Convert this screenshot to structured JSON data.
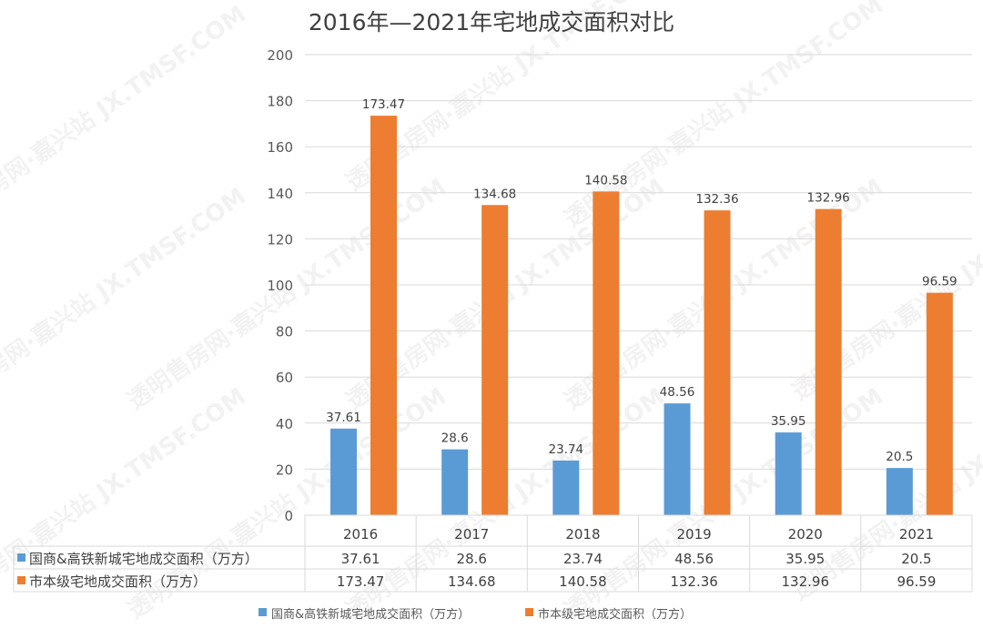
{
  "chart_data": {
    "type": "bar",
    "title": "2016年—2021年宅地成交面积对比",
    "categories": [
      "2016",
      "2017",
      "2018",
      "2019",
      "2020",
      "2021"
    ],
    "series": [
      {
        "name": "国商&高铁新城宅地成交面积（万方）",
        "color": "#5B9BD5",
        "values": [
          37.61,
          28.6,
          23.74,
          48.56,
          35.95,
          20.5
        ]
      },
      {
        "name": "市本级宅地成交面积（万方）",
        "color": "#ED7D31",
        "values": [
          173.47,
          134.68,
          140.58,
          132.36,
          132.96,
          96.59
        ]
      }
    ],
    "ylim": [
      0,
      200
    ],
    "yticks": [
      0,
      20,
      40,
      60,
      80,
      100,
      120,
      140,
      160,
      180,
      200
    ],
    "grid": true,
    "legend_position": "bottom",
    "data_table": true,
    "xlabel": "",
    "ylabel": ""
  },
  "watermark": "透明售房网·嘉兴站 JX.TMSF.COM"
}
